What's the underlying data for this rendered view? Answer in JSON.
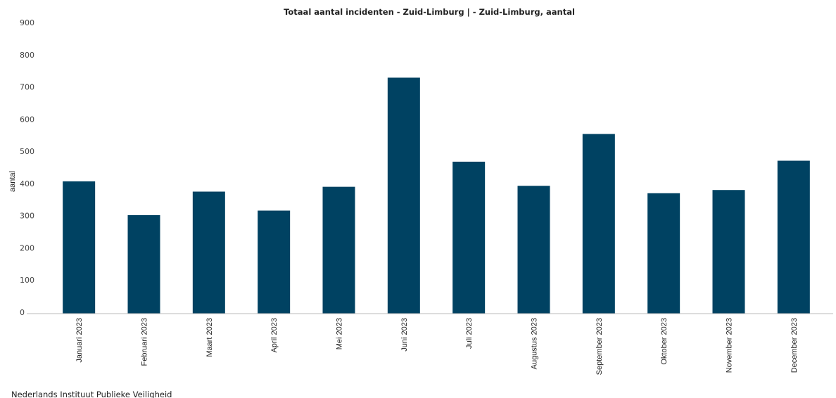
{
  "chart": {
    "title": "Totaal aantal incidenten - Zuid-Limburg | - Zuid-Limburg, aantal",
    "source": "Nederlands Instituut Publieke Veiligheid"
  },
  "colors": {
    "bar": "#004262",
    "axis": "#bbbbbb"
  },
  "chart_data": {
    "type": "bar",
    "title": "Totaal aantal incidenten - Zuid-Limburg | - Zuid-Limburg, aantal",
    "xlabel": "",
    "ylabel": "aantal",
    "ylim": [
      0,
      900
    ],
    "yticks": [
      0,
      100,
      200,
      300,
      400,
      500,
      600,
      700,
      800,
      900
    ],
    "grid": false,
    "categories": [
      "Januari 2023",
      "Februari 2023",
      "Maart 2023",
      "April 2023",
      "Mei 2023",
      "Juni 2023",
      "Juli 2023",
      "Augustus 2023",
      "September 2023",
      "Oktober 2023",
      "November 2023",
      "December 2023"
    ],
    "values": [
      411,
      306,
      379,
      320,
      394,
      733,
      472,
      397,
      558,
      374,
      384,
      475
    ]
  }
}
